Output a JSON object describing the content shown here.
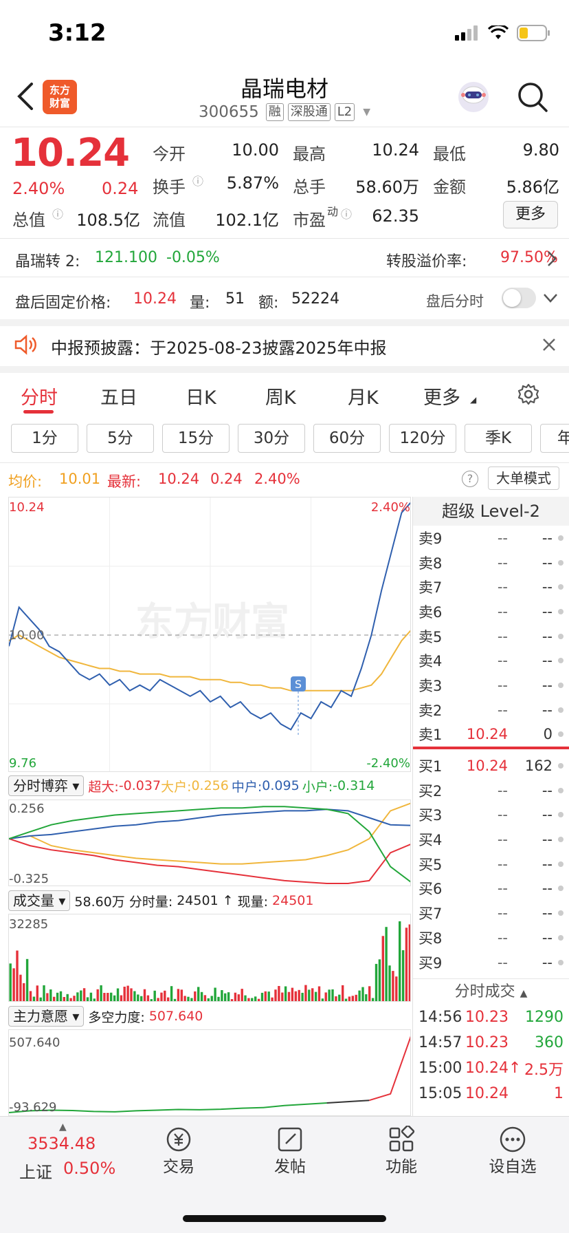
{
  "status": {
    "time": "3:12"
  },
  "nav": {
    "title": "晶瑞电材",
    "code": "300655",
    "tags": [
      "融",
      "深股通",
      "L2"
    ],
    "logo_lines": [
      "东方",
      "财富"
    ]
  },
  "quote": {
    "price": "10.24",
    "change_pct": "2.40%",
    "change": "0.24",
    "open_label": "今开",
    "open": "10.00",
    "high_label": "最高",
    "high": "10.24",
    "low_label": "最低",
    "low": "9.80",
    "turnover_label": "换手",
    "turnover": "5.87%",
    "volume_label": "总手",
    "volume": "58.60万",
    "amount_label": "金额",
    "amount": "5.86亿",
    "mktcap_label": "总值",
    "mktcap": "108.5亿",
    "float_label": "流值",
    "float": "102.1亿",
    "pe_label": "市盈",
    "pe_sup": "动",
    "pe": "62.35",
    "more_label": "更多"
  },
  "convertible": {
    "name": "晶瑞转 2:",
    "price": "121.100",
    "change": "-0.05%",
    "premium_label": "转股溢价率:",
    "premium": "97.50%"
  },
  "after_hours": {
    "price_label": "盘后固定价格:",
    "price": "10.24",
    "vol_label": "量:",
    "vol": "51",
    "amt_label": "额:",
    "amt": "52224",
    "toggle_label": "盘后分时"
  },
  "notice": {
    "text": "中报预披露：于2025-08-23披露2025年中报"
  },
  "tabs": [
    "分时",
    "五日",
    "日K",
    "周K",
    "月K",
    "更多"
  ],
  "periods": [
    "1分",
    "5分",
    "15分",
    "30分",
    "60分",
    "120分",
    "季K",
    "年"
  ],
  "chart_header": {
    "avg_label": "均价:",
    "avg": "10.01",
    "latest_label": "最新:",
    "latest": "10.24",
    "latest_change": "0.24",
    "latest_pct": "2.40%",
    "big_order_label": "大单模式"
  },
  "chart_data": [
    {
      "type": "line",
      "name": "intraday-price",
      "ylim": [
        9.76,
        10.24
      ],
      "y_tick_labels": {
        "top_left": "10.24",
        "mid": "10.00",
        "bottom_left": "9.76",
        "top_right": "2.40%",
        "bottom_right": "-2.40%"
      },
      "watermark": "东方财富",
      "series": [
        {
          "name": "price",
          "color": "#2f5fae",
          "values": [
            9.98,
            10.05,
            10.03,
            10.01,
            9.98,
            9.97,
            9.95,
            9.93,
            9.92,
            9.93,
            9.91,
            9.92,
            9.9,
            9.91,
            9.9,
            9.92,
            9.91,
            9.9,
            9.89,
            9.9,
            9.88,
            9.89,
            9.87,
            9.88,
            9.86,
            9.85,
            9.86,
            9.84,
            9.83,
            9.86,
            9.85,
            9.88,
            9.87,
            9.9,
            9.89,
            9.94,
            10.0,
            10.08,
            10.15,
            10.22,
            10.24
          ]
        },
        {
          "name": "avg",
          "color": "#f0b63c",
          "values": [
            9.99,
            10.0,
            9.99,
            9.98,
            9.97,
            9.96,
            9.955,
            9.95,
            9.945,
            9.94,
            9.94,
            9.935,
            9.935,
            9.93,
            9.93,
            9.93,
            9.925,
            9.925,
            9.925,
            9.92,
            9.92,
            9.92,
            9.915,
            9.915,
            9.91,
            9.91,
            9.905,
            9.905,
            9.9,
            9.9,
            9.9,
            9.9,
            9.9,
            9.9,
            9.9,
            9.905,
            9.91,
            9.93,
            9.96,
            9.99,
            10.01
          ]
        }
      ]
    },
    {
      "type": "line",
      "name": "fund-flow",
      "y_tick_labels": {
        "top": "0.256",
        "bottom": "-0.325"
      },
      "ylim": [
        -0.325,
        0.256
      ],
      "series": [
        {
          "name": "超大",
          "color": "#e5313a",
          "values": [
            0.0,
            -0.05,
            -0.08,
            -0.1,
            -0.12,
            -0.15,
            -0.17,
            -0.19,
            -0.2,
            -0.22,
            -0.24,
            -0.26,
            -0.28,
            -0.3,
            -0.31,
            -0.32,
            -0.32,
            -0.3,
            -0.1,
            -0.037
          ]
        },
        {
          "name": "大户",
          "color": "#f0b63c",
          "values": [
            0.0,
            0.02,
            -0.05,
            -0.08,
            -0.1,
            -0.12,
            -0.14,
            -0.15,
            -0.16,
            -0.17,
            -0.18,
            -0.18,
            -0.17,
            -0.16,
            -0.15,
            -0.12,
            -0.08,
            0.0,
            0.2,
            0.256
          ]
        },
        {
          "name": "中户",
          "color": "#2f5fae",
          "values": [
            0.0,
            0.02,
            0.03,
            0.05,
            0.07,
            0.09,
            0.1,
            0.12,
            0.13,
            0.15,
            0.17,
            0.18,
            0.19,
            0.2,
            0.2,
            0.21,
            0.2,
            0.15,
            0.1,
            0.095
          ]
        },
        {
          "name": "小户",
          "color": "#22a63a",
          "values": [
            0.0,
            0.05,
            0.1,
            0.13,
            0.15,
            0.17,
            0.18,
            0.19,
            0.2,
            0.21,
            0.22,
            0.22,
            0.23,
            0.23,
            0.22,
            0.21,
            0.18,
            0.05,
            -0.2,
            -0.314
          ]
        }
      ]
    },
    {
      "type": "bar",
      "name": "volume",
      "y_tick_labels": {
        "top": "32285"
      },
      "ylim": [
        0,
        32285
      ]
    },
    {
      "type": "line",
      "name": "main-intent",
      "y_tick_labels": {
        "top": "507.640",
        "bottom": "-93.629"
      },
      "ylim": [
        -93.629,
        507.64
      ],
      "series": [
        {
          "name": "多空力度",
          "color": "#22a63a",
          "values": [
            -93.6,
            -80,
            -75,
            -78,
            -85,
            -88,
            -80,
            -75,
            -70,
            -72,
            -68,
            -60,
            -55,
            -40,
            -30,
            -20,
            -10,
            0,
            50,
            507.64
          ]
        }
      ]
    }
  ],
  "flow_panel": {
    "title": "分时博弈",
    "items": [
      {
        "label": "超大:",
        "value": "-0.037",
        "color": "#e5313a"
      },
      {
        "label": "大户:",
        "value": "0.256",
        "color": "#f0b63c"
      },
      {
        "label": "中户:",
        "value": "0.095",
        "color": "#2f5fae"
      },
      {
        "label": "小户:",
        "value": "-0.314",
        "color": "#22a63a"
      }
    ]
  },
  "volume_panel": {
    "title": "成交量",
    "total": "58.60万",
    "interval_label": "分时量:",
    "interval_value": "24501 ↑",
    "now_label": "现量:",
    "now_value": "24501"
  },
  "intent_panel": {
    "title": "主力意愿",
    "label": "多空力度:",
    "value": "507.640"
  },
  "level2": {
    "title": "超级 Level-2",
    "asks": [
      {
        "label": "卖9",
        "price": "--",
        "vol": "--"
      },
      {
        "label": "卖8",
        "price": "--",
        "vol": "--"
      },
      {
        "label": "卖7",
        "price": "--",
        "vol": "--"
      },
      {
        "label": "卖6",
        "price": "--",
        "vol": "--"
      },
      {
        "label": "卖5",
        "price": "--",
        "vol": "--"
      },
      {
        "label": "卖4",
        "price": "--",
        "vol": "--"
      },
      {
        "label": "卖3",
        "price": "--",
        "vol": "--"
      },
      {
        "label": "卖2",
        "price": "--",
        "vol": "--"
      },
      {
        "label": "卖1",
        "price": "10.24",
        "vol": "0"
      }
    ],
    "bids": [
      {
        "label": "买1",
        "price": "10.24",
        "vol": "162"
      },
      {
        "label": "买2",
        "price": "--",
        "vol": "--"
      },
      {
        "label": "买3",
        "price": "--",
        "vol": "--"
      },
      {
        "label": "买4",
        "price": "--",
        "vol": "--"
      },
      {
        "label": "买5",
        "price": "--",
        "vol": "--"
      },
      {
        "label": "买6",
        "price": "--",
        "vol": "--"
      },
      {
        "label": "买7",
        "price": "--",
        "vol": "--"
      },
      {
        "label": "买8",
        "price": "--",
        "vol": "--"
      },
      {
        "label": "买9",
        "price": "--",
        "vol": "--"
      }
    ],
    "trades_title": "分时成交",
    "trades": [
      {
        "time": "14:56",
        "price": "10.23",
        "vol": "1290",
        "vol_color": "#22a63a"
      },
      {
        "time": "14:57",
        "price": "10.23",
        "vol": "360",
        "vol_color": "#22a63a"
      },
      {
        "time": "15:00",
        "price": "10.24↑",
        "vol": "2.5万",
        "vol_color": "#e5313a"
      },
      {
        "time": "15:05",
        "price": "10.24",
        "vol": "1",
        "vol_color": "#e5313a"
      }
    ]
  },
  "bottom_bar": {
    "index_value": "3534.48",
    "index_name": "上证",
    "index_pct": "0.50%",
    "items": [
      "交易",
      "发帖",
      "功能",
      "设自选"
    ]
  }
}
